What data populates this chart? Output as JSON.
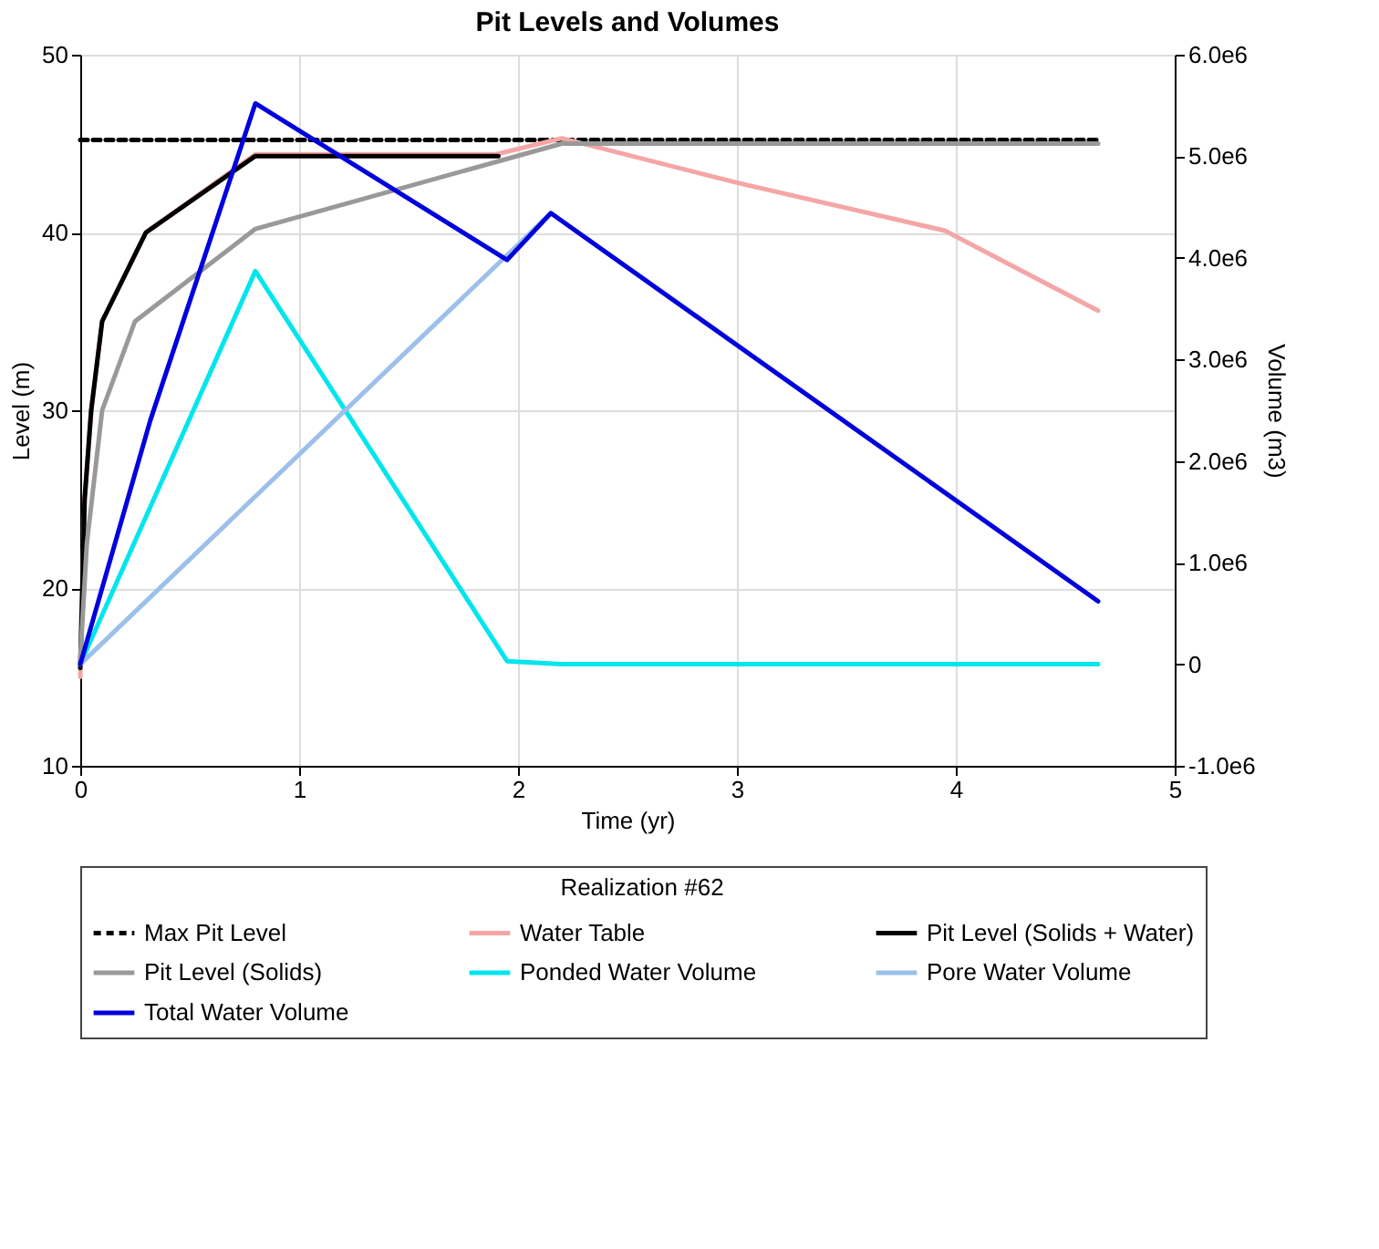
{
  "chart_data": {
    "type": "line",
    "title": "Pit Levels and Volumes",
    "xlabel": "Time (yr)",
    "ylabel": "Level (m)",
    "y2label": "Volume (m3)",
    "legend_title": "Realization #62",
    "xlim": [
      0,
      5
    ],
    "xticks": [
      0,
      1,
      2,
      3,
      4,
      5
    ],
    "ylim": [
      10,
      50
    ],
    "yticks": [
      10,
      20,
      30,
      40,
      50
    ],
    "y2lim": [
      -1000000,
      6000000
    ],
    "y2ticks": [
      {
        "value": -1000000,
        "label": "-1.0e6"
      },
      0,
      {
        "value": 1000000,
        "label": "1.0e6"
      },
      {
        "value": 2000000,
        "label": "2.0e6"
      },
      {
        "value": 3000000,
        "label": "3.0e6"
      },
      {
        "value": 4000000,
        "label": "4.0e6"
      },
      {
        "value": 5000000,
        "label": "5.0e6"
      },
      {
        "value": 6000000,
        "label": "6.0e6"
      }
    ],
    "grid": true,
    "legend": "bottom",
    "series": [
      {
        "name": "Max Pit Level",
        "color": "#000000",
        "line_style": "dashed",
        "x": [
          0,
          4.65
        ],
        "values": [
          45.2,
          45.2
        ]
      },
      {
        "name": "Water Table",
        "color": "#f4a6a6",
        "x": [
          0,
          0.02,
          0.05,
          0.1,
          0.3,
          0.8,
          1.9,
          2.2,
          3,
          3.95,
          4.65
        ],
        "values": [
          15,
          25,
          30,
          35,
          40,
          44.4,
          44.4,
          45.3,
          42.8,
          40.1,
          35.6
        ]
      },
      {
        "name": "Pit Level (Solids + Water)",
        "color": "#000000",
        "x": [
          0,
          0.02,
          0.05,
          0.1,
          0.3,
          0.8,
          1.91
        ],
        "values": [
          15.5,
          25,
          30,
          35,
          40,
          44.3,
          44.3
        ]
      },
      {
        "name": "Pit Level (Solids)",
        "color": "#999999",
        "x": [
          0,
          0.03,
          0.1,
          0.25,
          0.8,
          2.2,
          4.65
        ],
        "values": [
          16,
          22.5,
          30,
          35,
          40.2,
          45,
          45
        ]
      },
      {
        "name": "Ponded Water Volume",
        "color": "#00e5ee",
        "axis": "y2",
        "x": [
          0,
          0.8,
          1.95,
          2.2,
          4.65
        ],
        "values": [
          0,
          3870000,
          30000,
          0,
          0
        ]
      },
      {
        "name": "Pore Water Volume",
        "color": "#9cc0ea",
        "axis": "y2",
        "x": [
          0,
          2.15
        ],
        "values": [
          0,
          4440000
        ]
      },
      {
        "name": "Total Water Volume",
        "color": "#0000dd",
        "axis": "y2",
        "x": [
          0,
          0.32,
          0.8,
          1.95,
          2.15,
          4.65
        ],
        "values": [
          0,
          2400000,
          5520000,
          3980000,
          4440000,
          620000
        ]
      }
    ]
  }
}
